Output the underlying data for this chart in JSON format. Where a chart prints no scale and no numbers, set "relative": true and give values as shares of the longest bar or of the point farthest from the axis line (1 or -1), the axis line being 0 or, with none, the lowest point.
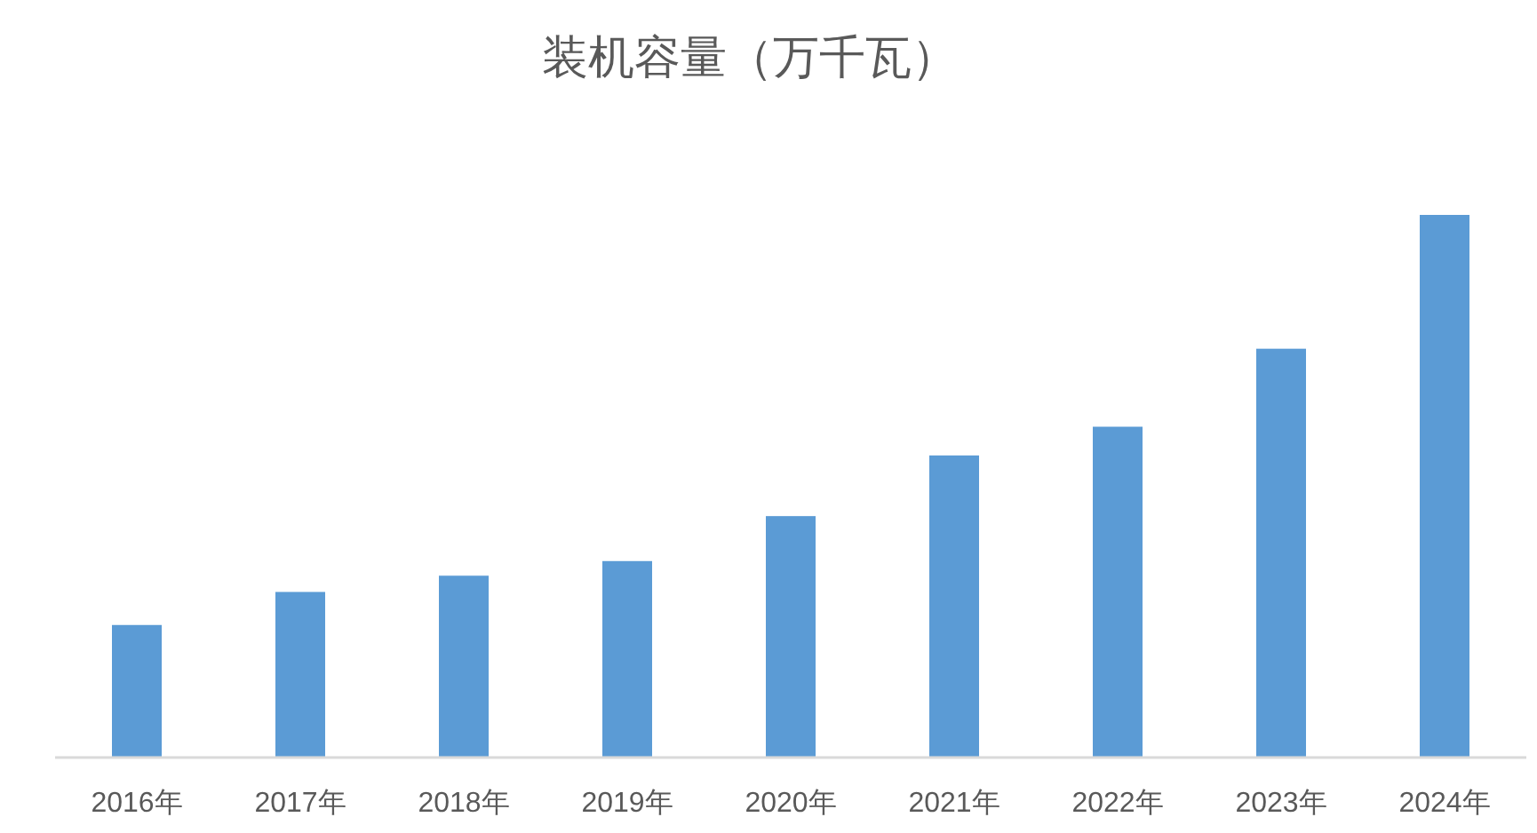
{
  "chart_data": {
    "type": "bar",
    "title": "装机容量（万千瓦）",
    "categories": [
      "2016年",
      "2017年",
      "2018年",
      "2019年",
      "2020年",
      "2021年",
      "2022年",
      "2023年",
      "2024年"
    ],
    "values": [
      0.243,
      0.304,
      0.334,
      0.361,
      0.444,
      0.556,
      0.609,
      0.753,
      1
    ],
    "color": "#5b9bd5",
    "relative": true
  }
}
